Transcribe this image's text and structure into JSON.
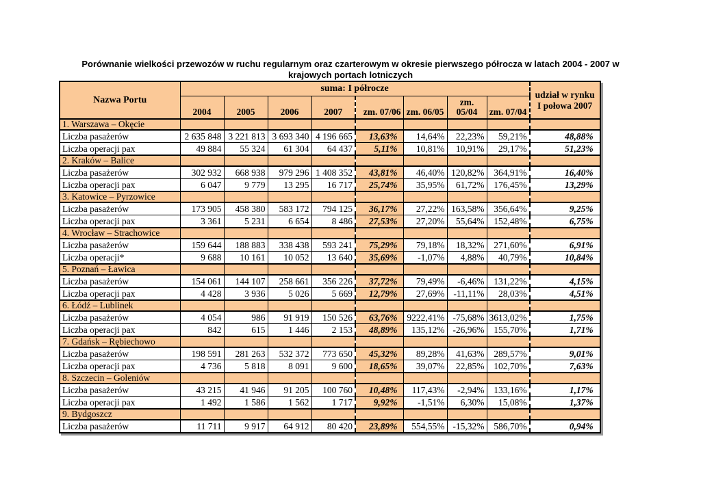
{
  "page": {
    "title": "Porównanie wielkości przewozów w ruchu regularnym oraz czarterowym w okresie pierwszego półrocza w latach 2004 - 2007 w krajowych portach lotniczych"
  },
  "colors": {
    "header_fill": "#fbc998",
    "highlight_column_fill": "#fbc998",
    "table_border": "#000000",
    "table_shadow": "#999999"
  },
  "table": {
    "header": {
      "port_col": "Nazwa Portu",
      "suma_group": "suma: I półrocze",
      "udzial_col": "udział w rynku\nI połowa 2007",
      "columns": [
        "2004",
        "2005",
        "2006",
        "2007",
        "zm. 07/06",
        "zm. 06/05",
        "zm.\n05/04",
        "zm. 07/04"
      ]
    },
    "sections": [
      {
        "name": "1. Warszawa – Okęcie",
        "rows": [
          {
            "label": "Liczba pasażerów",
            "values": [
              "2 635 848",
              "3 221 813",
              "3 693 340",
              "4 196 665",
              "13,63%",
              "14,64%",
              "22,23%",
              "59,21%",
              "48,88%"
            ]
          },
          {
            "label": "Liczba operacji pax",
            "values": [
              "49 884",
              "55 324",
              "61 304",
              "64 437",
              "5,11%",
              "10,81%",
              "10,91%",
              "29,17%",
              "51,23%"
            ]
          }
        ]
      },
      {
        "name": "2. Kraków – Balice",
        "rows": [
          {
            "label": "Liczba pasażerów",
            "values": [
              "302 932",
              "668 938",
              "979 296",
              "1 408 352",
              "43,81%",
              "46,40%",
              "120,82%",
              "364,91%",
              "16,40%"
            ]
          },
          {
            "label": "Liczba operacji pax",
            "values": [
              "6 047",
              "9 779",
              "13 295",
              "16 717",
              "25,74%",
              "35,95%",
              "61,72%",
              "176,45%",
              "13,29%"
            ]
          }
        ]
      },
      {
        "name": "3. Katowice – Pyrzowice",
        "rows": [
          {
            "label": "Liczba pasażerów",
            "values": [
              "173 905",
              "458 380",
              "583 172",
              "794 125",
              "36,17%",
              "27,22%",
              "163,58%",
              "356,64%",
              "9,25%"
            ]
          },
          {
            "label": "Liczba operacji pax",
            "values": [
              "3 361",
              "5 231",
              "6 654",
              "8 486",
              "27,53%",
              "27,20%",
              "55,64%",
              "152,48%",
              "6,75%"
            ]
          }
        ]
      },
      {
        "name": "4. Wrocław – Strachowice",
        "rows": [
          {
            "label": "Liczba pasażerów",
            "values": [
              "159 644",
              "188 883",
              "338 438",
              "593 241",
              "75,29%",
              "79,18%",
              "18,32%",
              "271,60%",
              "6,91%"
            ]
          },
          {
            "label": "Liczba operacji*",
            "values": [
              "9 688",
              "10 161",
              "10 052",
              "13 640",
              "35,69%",
              "-1,07%",
              "4,88%",
              "40,79%",
              "10,84%"
            ]
          }
        ]
      },
      {
        "name": "5. Poznań – Ławica",
        "rows": [
          {
            "label": "Liczba pasażerów",
            "values": [
              "154 061",
              "144 107",
              "258 661",
              "356 226",
              "37,72%",
              "79,49%",
              "-6,46%",
              "131,22%",
              "4,15%"
            ]
          },
          {
            "label": "Liczba operacji pax",
            "values": [
              "4 428",
              "3 936",
              "5 026",
              "5 669",
              "12,79%",
              "27,69%",
              "-11,11%",
              "28,03%",
              "4,51%"
            ]
          }
        ]
      },
      {
        "name": "6. Łódź – Lublinek",
        "rows": [
          {
            "label": "Liczba pasażerów",
            "values": [
              "4 054",
              "986",
              "91 919",
              "150 526",
              "63,76%",
              "9222,41%",
              "-75,68%",
              "3613,02%",
              "1,75%"
            ]
          },
          {
            "label": "Liczba operacji pax",
            "values": [
              "842",
              "615",
              "1 446",
              "2 153",
              "48,89%",
              "135,12%",
              "-26,96%",
              "155,70%",
              "1,71%"
            ]
          }
        ]
      },
      {
        "name": "7. Gdańsk – Rębiechowo",
        "rows": [
          {
            "label": "Liczba pasażerów",
            "values": [
              "198 591",
              "281 263",
              "532 372",
              "773 650",
              "45,32%",
              "89,28%",
              "41,63%",
              "289,57%",
              "9,01%"
            ]
          },
          {
            "label": "Liczba operacji pax",
            "values": [
              "4 736",
              "5 818",
              "8 091",
              "9 600",
              "18,65%",
              "39,07%",
              "22,85%",
              "102,70%",
              "7,63%"
            ]
          }
        ]
      },
      {
        "name": "8. Szczecin – Goleniów",
        "rows": [
          {
            "label": "Liczba pasażerów",
            "values": [
              "43 215",
              "41 946",
              "91 205",
              "100 760",
              "10,48%",
              "117,43%",
              "-2,94%",
              "133,16%",
              "1,17%"
            ]
          },
          {
            "label": "Liczba operacji pax",
            "values": [
              "1 492",
              "1 586",
              "1 562",
              "1 717",
              "9,92%",
              "-1,51%",
              "6,30%",
              "15,08%",
              "1,37%"
            ]
          }
        ]
      },
      {
        "name": "9. Bydgoszcz",
        "rows": [
          {
            "label": "Liczba pasażerów",
            "values": [
              "11 711",
              "9 917",
              "64 912",
              "80 420",
              "23,89%",
              "554,55%",
              "-15,32%",
              "586,70%",
              "0,94%"
            ]
          }
        ]
      }
    ]
  }
}
